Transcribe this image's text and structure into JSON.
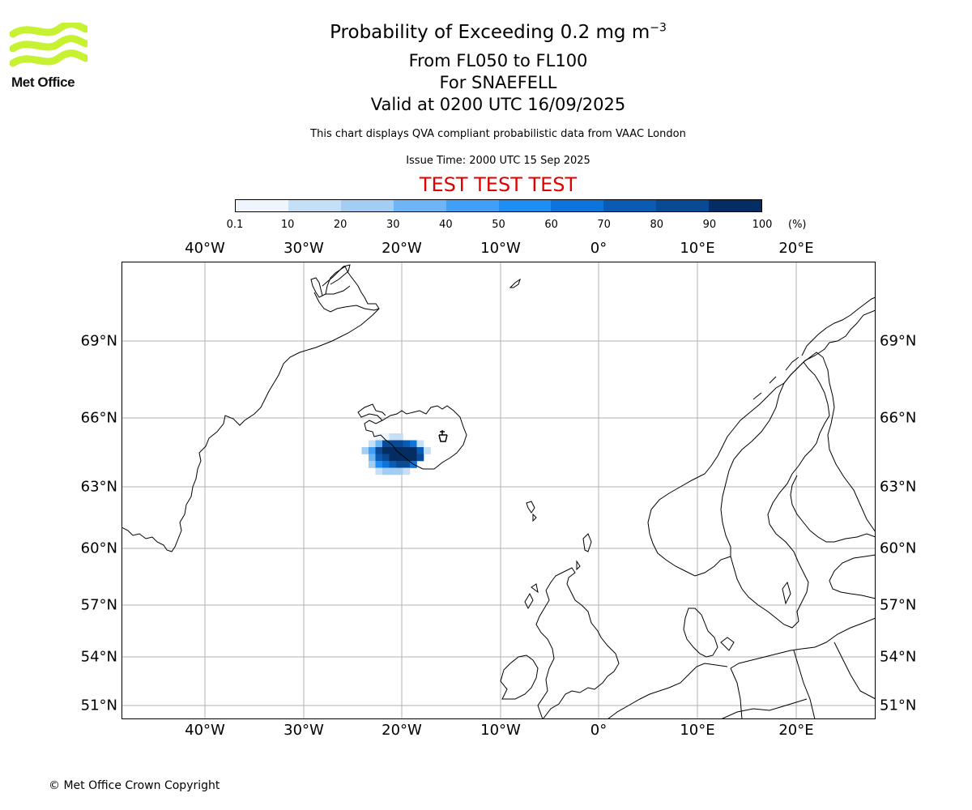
{
  "logo": {
    "text": "Met Office",
    "accent_color": "#c6f232"
  },
  "header": {
    "title": "Probability of Exceeding 0.2 mg m",
    "title_exponent": "−3",
    "line2": "From FL050 to FL100",
    "line3": "For SNAEFELL",
    "line4": "Valid at 0200 UTC 16/09/2025",
    "note": "This chart displays QVA compliant probabilistic data from VAAC London",
    "issue_time": "Issue Time: 2000 UTC 15 Sep 2025",
    "test_banner": "TEST TEST TEST",
    "test_color": "#e00000"
  },
  "colorbar": {
    "ticks": [
      "0.1",
      "10",
      "20",
      "30",
      "40",
      "50",
      "60",
      "70",
      "80",
      "90",
      "100"
    ],
    "unit": "(%)",
    "colors": [
      "#eef5fd",
      "#c5dff6",
      "#a3cdf3",
      "#6db5f4",
      "#419ff7",
      "#1f8ef2",
      "#0c74db",
      "#0a5bb4",
      "#084a93",
      "#032d63"
    ]
  },
  "map": {
    "lon_labels": [
      "40°W",
      "30°W",
      "20°W",
      "10°W",
      "0°",
      "10°E",
      "20°E"
    ],
    "lat_labels": [
      "69°N",
      "66°N",
      "63°N",
      "60°N",
      "57°N",
      "54°N",
      "51°N"
    ],
    "volcano_marker": "SNAEFELL",
    "grid": true
  },
  "footer": {
    "copyright": "© Met Office Crown Copyright"
  }
}
